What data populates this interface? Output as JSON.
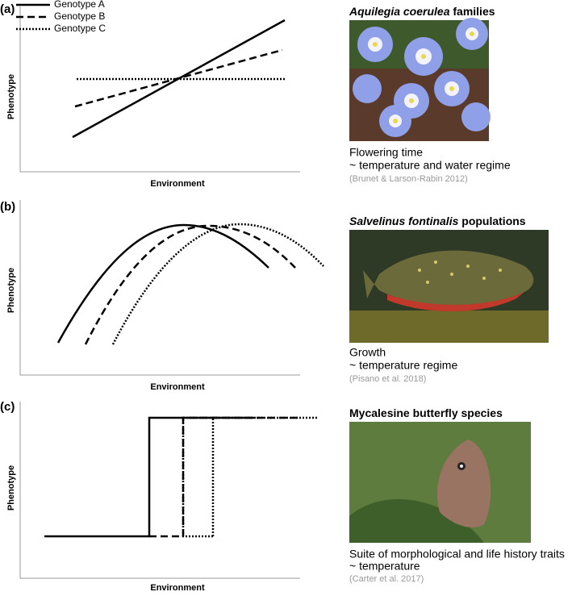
{
  "legend": [
    "Genotype A",
    "Genotype B",
    "Genotype C"
  ],
  "panels": [
    {
      "label": "(a)",
      "x_label": "Environment",
      "y_label": "Phenotype",
      "example": {
        "title_parts": [
          {
            "text": "Aquilegia coerulea",
            "italic": true
          },
          {
            "text": " families",
            "italic": false
          }
        ],
        "trait": "Flowering time",
        "driver": "~ temperature and water regime",
        "citation": "(Brunet & Larson-Rabin 2012)"
      }
    },
    {
      "label": "(b)",
      "x_label": "Environment",
      "y_label": "Phenotype",
      "example": {
        "title_parts": [
          {
            "text": "Salvelinus fontinalis",
            "italic": true
          },
          {
            "text": " populations",
            "italic": false
          }
        ],
        "trait": "Growth",
        "driver": "~ temperature regime",
        "citation": "(Pisano et al. 2018)"
      }
    },
    {
      "label": "(c)",
      "x_label": "Environment",
      "y_label": "Phenotype",
      "example": {
        "title_parts": [
          {
            "text": "Mycalesine butterfly species",
            "italic": false
          }
        ],
        "trait": "Suite of morphological and life history traits",
        "driver": "~ temperature",
        "citation": "(Carter et al. 2017)"
      }
    }
  ]
}
